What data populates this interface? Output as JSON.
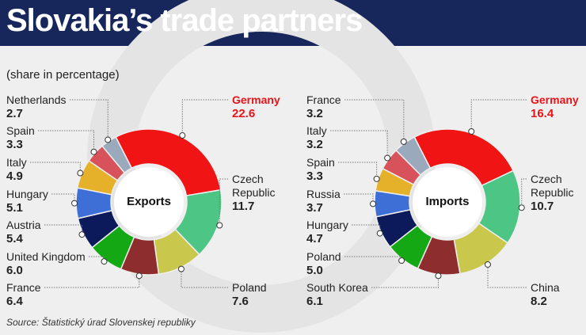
{
  "title": "Slovakia’s trade partners",
  "subtitle": "(share in percentage)",
  "source": "Source: Štatistický úrad Slovenskej republiky",
  "chart_data": [
    {
      "type": "donut",
      "center_label": "Exports",
      "categories": [
        "Germany",
        "Czech Republic",
        "Poland",
        "France",
        "United Kingdom",
        "Austria",
        "Hungary",
        "Italy",
        "Spain",
        "Netherlands"
      ],
      "values": [
        22.6,
        11.7,
        7.6,
        6.4,
        6.0,
        5.4,
        5.1,
        4.9,
        3.3,
        2.7
      ],
      "value_labels": [
        "22.6",
        "11.7",
        "7.6",
        "6.4",
        "6.0",
        "5.4",
        "5.1",
        "4.9",
        "3.3",
        "2.7"
      ],
      "colors": [
        "#f01414",
        "#4cc585",
        "#c9c84c",
        "#8e2d2d",
        "#14a814",
        "#0c1a5c",
        "#3d6fd6",
        "#e6b12a",
        "#d8525b",
        "#9ba9bc"
      ]
    },
    {
      "type": "donut",
      "center_label": "Imports",
      "categories": [
        "Germany",
        "Czech Republic",
        "China",
        "South Korea",
        "Poland",
        "Hungary",
        "Russia",
        "Spain",
        "Italy",
        "France"
      ],
      "values": [
        16.4,
        10.7,
        8.2,
        6.1,
        5.0,
        4.7,
        3.7,
        3.3,
        3.2,
        3.2
      ],
      "value_labels": [
        "16.4",
        "10.7",
        "8.2",
        "6.1",
        "5.0",
        "4.7",
        "3.7",
        "3.3",
        "3.2",
        "3.2"
      ],
      "colors": [
        "#f01414",
        "#4cc585",
        "#c9c84c",
        "#8e2d2d",
        "#14a814",
        "#0c1a5c",
        "#3d6fd6",
        "#e6b12a",
        "#d8525b",
        "#9ba9bc"
      ]
    }
  ]
}
